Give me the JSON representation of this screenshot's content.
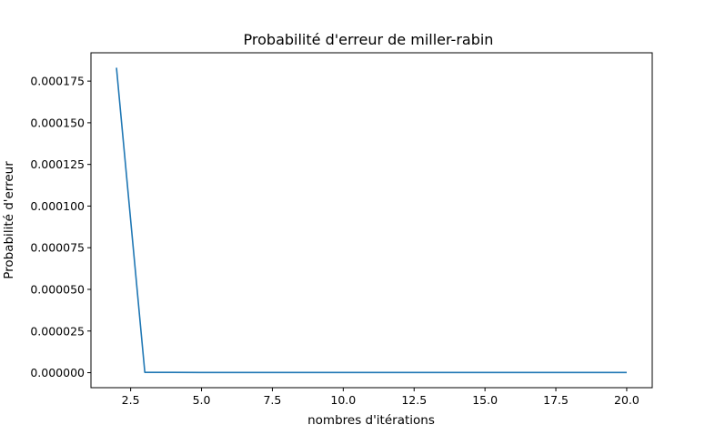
{
  "chart_data": {
    "type": "line",
    "title": "Probabilité d'erreur de miller-rabin",
    "xlabel": "nombres d'itérations",
    "ylabel": "Probabilité d'erreur",
    "xlim": [
      1.1,
      20.9
    ],
    "ylim": [
      -9e-06,
      0.000192
    ],
    "x_ticks": [
      2.5,
      5.0,
      7.5,
      10.0,
      12.5,
      15.0,
      17.5,
      20.0
    ],
    "x_tick_labels": [
      "2.5",
      "5.0",
      "7.5",
      "10.0",
      "12.5",
      "15.0",
      "17.5",
      "20.0"
    ],
    "y_ticks": [
      0.0,
      2.5e-05,
      5e-05,
      7.5e-05,
      0.0001,
      0.000125,
      0.00015,
      0.000175
    ],
    "y_tick_labels": [
      "0.000000",
      "0.000025",
      "0.000050",
      "0.000075",
      "0.000100",
      "0.000125",
      "0.000150",
      "0.000175"
    ],
    "grid": false,
    "legend": "none",
    "series": [
      {
        "color": "#1f77b4",
        "x": [
          2,
          3,
          4,
          5,
          6,
          7,
          8,
          9,
          10,
          11,
          12,
          13,
          14,
          15,
          16,
          17,
          18,
          19,
          20
        ],
        "values": [
          0.000183,
          2e-07,
          2e-07,
          1e-07,
          1e-07,
          1e-07,
          1e-07,
          1e-07,
          1e-07,
          1e-07,
          1e-07,
          1e-07,
          1e-07,
          1e-07,
          1e-07,
          1e-07,
          1e-07,
          1e-07,
          1e-07
        ]
      }
    ]
  }
}
